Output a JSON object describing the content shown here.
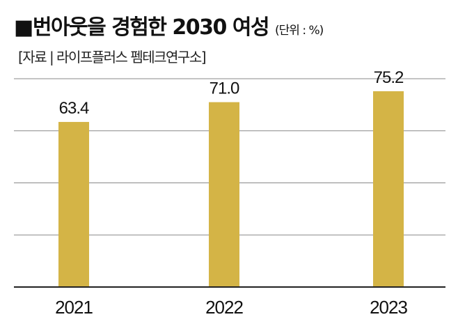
{
  "title": "■번아웃을 경험한 2030 여성",
  "unit": "(단위 : %)",
  "source": "[자료 | 라이프플러스 펨테크연구소]",
  "chart_data": {
    "type": "bar",
    "categories": [
      "2021",
      "2022",
      "2023"
    ],
    "values": [
      63.4,
      71.0,
      75.2
    ],
    "value_labels": [
      "63.4",
      "71.0",
      "75.2"
    ],
    "ylim": [
      0,
      80
    ],
    "grid": true,
    "grid_step": 20,
    "bar_color": "#d4b446",
    "grid_color": "#888888"
  }
}
